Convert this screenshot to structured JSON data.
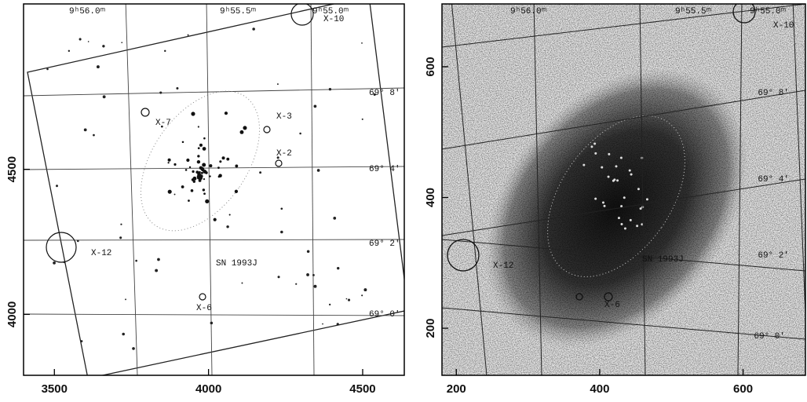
{
  "chart_data": [
    {
      "type": "image",
      "xlim": [
        3400,
        4635
      ],
      "ylim": [
        3790,
        5070
      ],
      "xticks": [
        3500,
        4000,
        4500
      ],
      "yticks": [
        4000,
        4500
      ],
      "annotations": [
        "9ʰ56.0ᵐ",
        "9ʰ55.5ᵐ",
        "9ʰ55.0ᵐ",
        "X-10",
        "69° 8'",
        "X-3",
        "X-7",
        "X-2",
        "69° 4'",
        "69° 2'",
        "X-12",
        "SN 1993J",
        "X-6",
        "69° 0'"
      ]
    },
    {
      "type": "image",
      "xlim": [
        180,
        687
      ],
      "ylim": [
        128,
        696
      ],
      "xticks": [
        200,
        400,
        600
      ],
      "yticks": [
        200,
        400,
        600
      ],
      "annotations": [
        "9ʰ56.0ᵐ",
        "9ʰ55.5ᵐ",
        "9ʰ55.0ᵐ",
        "X-10",
        "69° 8'",
        "69° 4'",
        "X-12",
        "SN 1993J",
        "X-6",
        "69° 2'",
        "69° 0'"
      ]
    }
  ]
}
